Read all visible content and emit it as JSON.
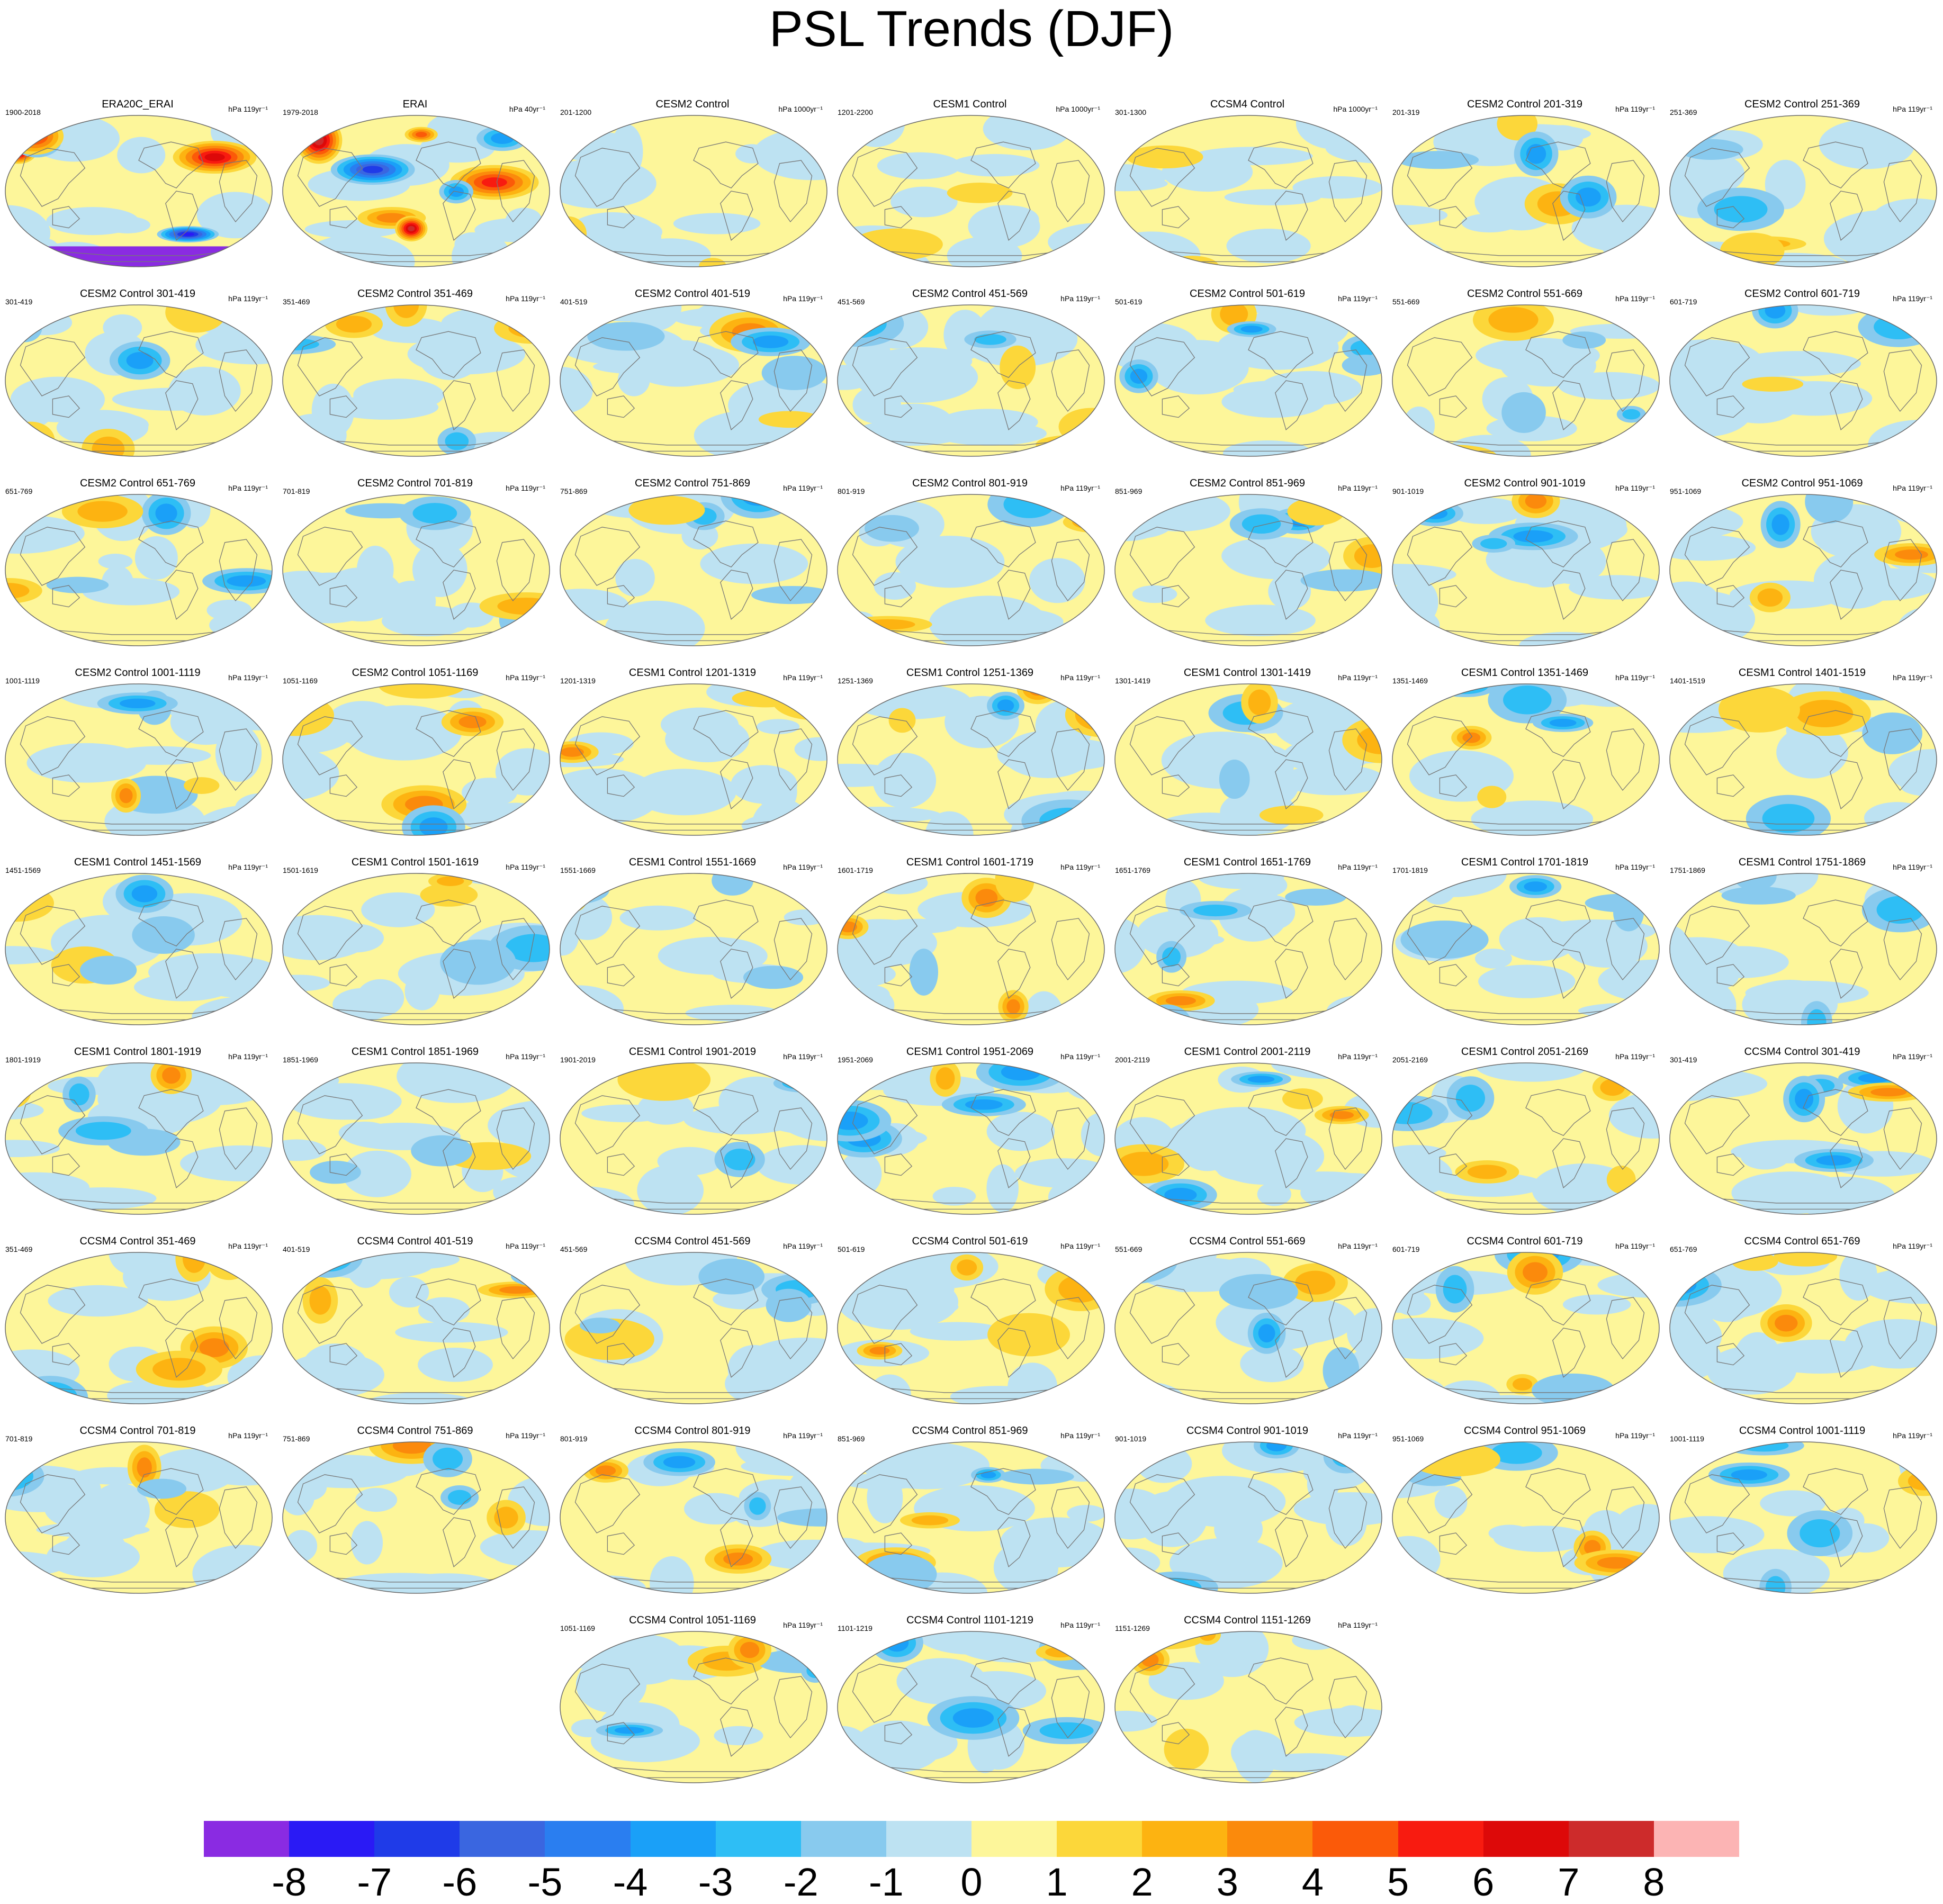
{
  "title": "PSL Trends (DJF)",
  "colorbar": {
    "colors": [
      "#8a2be2",
      "#2a1af5",
      "#1f3be8",
      "#3a66e0",
      "#2a7ef0",
      "#1aa0f8",
      "#2ebef5",
      "#88caee",
      "#bde2f2",
      "#fdf69a",
      "#fcd73a",
      "#fdb311",
      "#fb8a0c",
      "#fb5a09",
      "#f81b10",
      "#dd0909",
      "#cd2b2b",
      "#fcb4b4"
    ],
    "labels": [
      "-8",
      "-7",
      "-6",
      "-5",
      "-4",
      "-3",
      "-2",
      "-1",
      "0",
      "1",
      "2",
      "3",
      "4",
      "5",
      "6",
      "7",
      "8"
    ]
  },
  "panels": [
    {
      "title": "ERA20C_ERAI",
      "years": "1900-2018",
      "units": "hPa 119yr⁻¹",
      "style": "strong"
    },
    {
      "title": "ERAI",
      "years": "1979-2018",
      "units": "hPa 40yr⁻¹",
      "style": "strong"
    },
    {
      "title": "CESM2 Control",
      "years": "201-1200",
      "units": "hPa 1000yr⁻¹",
      "style": "weak"
    },
    {
      "title": "CESM1 Control",
      "years": "1201-2200",
      "units": "hPa 1000yr⁻¹",
      "style": "weak"
    },
    {
      "title": "CCSM4 Control",
      "years": "301-1300",
      "units": "hPa 1000yr⁻¹",
      "style": "weak"
    },
    {
      "title": "CESM2 Control 201-319",
      "years": "201-319",
      "units": "hPa 119yr⁻¹"
    },
    {
      "title": "CESM2 Control 251-369",
      "years": "251-369",
      "units": "hPa 119yr⁻¹"
    },
    {
      "title": "CESM2 Control 301-419",
      "years": "301-419",
      "units": "hPa 119yr⁻¹"
    },
    {
      "title": "CESM2 Control 351-469",
      "years": "351-469",
      "units": "hPa 119yr⁻¹"
    },
    {
      "title": "CESM2 Control 401-519",
      "years": "401-519",
      "units": "hPa 119yr⁻¹"
    },
    {
      "title": "CESM2 Control 451-569",
      "years": "451-569",
      "units": "hPa 119yr⁻¹"
    },
    {
      "title": "CESM2 Control 501-619",
      "years": "501-619",
      "units": "hPa 119yr⁻¹"
    },
    {
      "title": "CESM2 Control 551-669",
      "years": "551-669",
      "units": "hPa 119yr⁻¹"
    },
    {
      "title": "CESM2 Control 601-719",
      "years": "601-719",
      "units": "hPa 119yr⁻¹"
    },
    {
      "title": "CESM2 Control 651-769",
      "years": "651-769",
      "units": "hPa 119yr⁻¹"
    },
    {
      "title": "CESM2 Control 701-819",
      "years": "701-819",
      "units": "hPa 119yr⁻¹"
    },
    {
      "title": "CESM2 Control 751-869",
      "years": "751-869",
      "units": "hPa 119yr⁻¹"
    },
    {
      "title": "CESM2 Control 801-919",
      "years": "801-919",
      "units": "hPa 119yr⁻¹"
    },
    {
      "title": "CESM2 Control 851-969",
      "years": "851-969",
      "units": "hPa 119yr⁻¹"
    },
    {
      "title": "CESM2 Control 901-1019",
      "years": "901-1019",
      "units": "hPa 119yr⁻¹"
    },
    {
      "title": "CESM2 Control 951-1069",
      "years": "951-1069",
      "units": "hPa 119yr⁻¹"
    },
    {
      "title": "CESM2 Control 1001-1119",
      "years": "1001-1119",
      "units": "hPa 119yr⁻¹"
    },
    {
      "title": "CESM2 Control 1051-1169",
      "years": "1051-1169",
      "units": "hPa 119yr⁻¹"
    },
    {
      "title": "CESM1 Control 1201-1319",
      "years": "1201-1319",
      "units": "hPa 119yr⁻¹"
    },
    {
      "title": "CESM1 Control 1251-1369",
      "years": "1251-1369",
      "units": "hPa 119yr⁻¹"
    },
    {
      "title": "CESM1 Control 1301-1419",
      "years": "1301-1419",
      "units": "hPa 119yr⁻¹"
    },
    {
      "title": "CESM1 Control 1351-1469",
      "years": "1351-1469",
      "units": "hPa 119yr⁻¹"
    },
    {
      "title": "CESM1 Control 1401-1519",
      "years": "1401-1519",
      "units": "hPa 119yr⁻¹"
    },
    {
      "title": "CESM1 Control 1451-1569",
      "years": "1451-1569",
      "units": "hPa 119yr⁻¹"
    },
    {
      "title": "CESM1 Control 1501-1619",
      "years": "1501-1619",
      "units": "hPa 119yr⁻¹"
    },
    {
      "title": "CESM1 Control 1551-1669",
      "years": "1551-1669",
      "units": "hPa 119yr⁻¹"
    },
    {
      "title": "CESM1 Control 1601-1719",
      "years": "1601-1719",
      "units": "hPa 119yr⁻¹"
    },
    {
      "title": "CESM1 Control 1651-1769",
      "years": "1651-1769",
      "units": "hPa 119yr⁻¹"
    },
    {
      "title": "CESM1 Control 1701-1819",
      "years": "1701-1819",
      "units": "hPa 119yr⁻¹"
    },
    {
      "title": "CESM1 Control 1751-1869",
      "years": "1751-1869",
      "units": "hPa 119yr⁻¹"
    },
    {
      "title": "CESM1 Control 1801-1919",
      "years": "1801-1919",
      "units": "hPa 119yr⁻¹"
    },
    {
      "title": "CESM1 Control 1851-1969",
      "years": "1851-1969",
      "units": "hPa 119yr⁻¹"
    },
    {
      "title": "CESM1 Control 1901-2019",
      "years": "1901-2019",
      "units": "hPa 119yr⁻¹"
    },
    {
      "title": "CESM1 Control 1951-2069",
      "years": "1951-2069",
      "units": "hPa 119yr⁻¹"
    },
    {
      "title": "CESM1 Control 2001-2119",
      "years": "2001-2119",
      "units": "hPa 119yr⁻¹"
    },
    {
      "title": "CESM1 Control 2051-2169",
      "years": "2051-2169",
      "units": "hPa 119yr⁻¹"
    },
    {
      "title": "CCSM4 Control 301-419",
      "years": "301-419",
      "units": "hPa 119yr⁻¹"
    },
    {
      "title": "CCSM4 Control 351-469",
      "years": "351-469",
      "units": "hPa 119yr⁻¹"
    },
    {
      "title": "CCSM4 Control 401-519",
      "years": "401-519",
      "units": "hPa 119yr⁻¹"
    },
    {
      "title": "CCSM4 Control 451-569",
      "years": "451-569",
      "units": "hPa 119yr⁻¹"
    },
    {
      "title": "CCSM4 Control 501-619",
      "years": "501-619",
      "units": "hPa 119yr⁻¹"
    },
    {
      "title": "CCSM4 Control 551-669",
      "years": "551-669",
      "units": "hPa 119yr⁻¹"
    },
    {
      "title": "CCSM4 Control 601-719",
      "years": "601-719",
      "units": "hPa 119yr⁻¹"
    },
    {
      "title": "CCSM4 Control 651-769",
      "years": "651-769",
      "units": "hPa 119yr⁻¹"
    },
    {
      "title": "CCSM4 Control 701-819",
      "years": "701-819",
      "units": "hPa 119yr⁻¹"
    },
    {
      "title": "CCSM4 Control 751-869",
      "years": "751-869",
      "units": "hPa 119yr⁻¹"
    },
    {
      "title": "CCSM4 Control 801-919",
      "years": "801-919",
      "units": "hPa 119yr⁻¹"
    },
    {
      "title": "CCSM4 Control 851-969",
      "years": "851-969",
      "units": "hPa 119yr⁻¹"
    },
    {
      "title": "CCSM4 Control 901-1019",
      "years": "901-1019",
      "units": "hPa 119yr⁻¹"
    },
    {
      "title": "CCSM4 Control 951-1069",
      "years": "951-1069",
      "units": "hPa 119yr⁻¹"
    },
    {
      "title": "CCSM4 Control 1001-1119",
      "years": "1001-1119",
      "units": "hPa 119yr⁻¹"
    },
    {
      "title": "CCSM4 Control 1051-1169",
      "years": "1051-1169",
      "units": "hPa 119yr⁻¹"
    },
    {
      "title": "CCSM4 Control 1101-1219",
      "years": "1101-1219",
      "units": "hPa 119yr⁻¹"
    },
    {
      "title": "CCSM4 Control 1151-1269",
      "years": "1151-1269",
      "units": "hPa 119yr⁻¹"
    }
  ]
}
